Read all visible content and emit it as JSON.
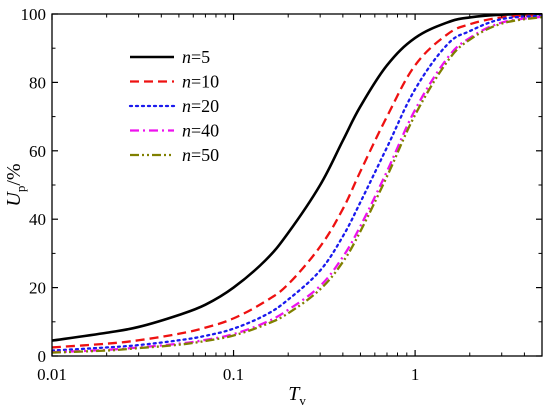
{
  "chart_data": {
    "type": "line",
    "title": "",
    "xlabel": {
      "main": "T",
      "sub": "v"
    },
    "ylabel": {
      "main": "U",
      "sub": "p",
      "suffix": "/%"
    },
    "xscale": "log",
    "xlim": [
      0.01,
      5
    ],
    "ylim": [
      0,
      100
    ],
    "xticks": [
      {
        "value": 0.01,
        "label": "0.01"
      },
      {
        "value": 0.1,
        "label": "0.1"
      },
      {
        "value": 1,
        "label": "1"
      }
    ],
    "yticks": [
      {
        "value": 0,
        "label": "0"
      },
      {
        "value": 20,
        "label": "20"
      },
      {
        "value": 40,
        "label": "40"
      },
      {
        "value": 60,
        "label": "60"
      },
      {
        "value": 80,
        "label": "80"
      },
      {
        "value": 100,
        "label": "100"
      }
    ],
    "grid": false,
    "legend": "upper-left",
    "series": [
      {
        "name_italic": "n",
        "name_rest": "=5",
        "color": "#000000",
        "style": "solid",
        "x": [
          0.01,
          0.02,
          0.03,
          0.05,
          0.07,
          0.1,
          0.15,
          0.2,
          0.3,
          0.4,
          0.5,
          0.7,
          1.0,
          1.5,
          2,
          3,
          5
        ],
        "y": [
          4.5,
          6.8,
          8.5,
          12,
          15,
          20,
          28,
          36,
          50,
          63,
          73,
          85,
          93,
          97.5,
          99,
          99.8,
          100
        ]
      },
      {
        "name_italic": "n",
        "name_rest": "=10",
        "color": "#ee1111",
        "style": "dash",
        "x": [
          0.01,
          0.02,
          0.03,
          0.05,
          0.07,
          0.1,
          0.15,
          0.2,
          0.3,
          0.4,
          0.5,
          0.7,
          1.0,
          1.5,
          2,
          3,
          5
        ],
        "y": [
          2.5,
          3.6,
          4.6,
          6.5,
          8.3,
          11,
          16,
          21,
          32,
          43,
          54,
          70,
          85,
          94,
          97,
          99,
          99.7
        ]
      },
      {
        "name_italic": "n",
        "name_rest": "=20",
        "color": "#1a1aee",
        "style": "dot",
        "x": [
          0.01,
          0.02,
          0.03,
          0.05,
          0.07,
          0.1,
          0.15,
          0.2,
          0.3,
          0.4,
          0.5,
          0.7,
          1.0,
          1.5,
          2,
          3,
          5
        ],
        "y": [
          1.6,
          2.5,
          3.2,
          4.6,
          5.9,
          8,
          12,
          16.5,
          25,
          35,
          45,
          61,
          78,
          91,
          95,
          98.5,
          99.5
        ]
      },
      {
        "name_italic": "n",
        "name_rest": "=40",
        "color": "#ee11ee",
        "style": "dashdot",
        "x": [
          0.01,
          0.02,
          0.03,
          0.05,
          0.07,
          0.1,
          0.15,
          0.2,
          0.3,
          0.4,
          0.5,
          0.7,
          1.0,
          1.5,
          2,
          3,
          5
        ],
        "y": [
          1.1,
          1.8,
          2.5,
          3.6,
          4.7,
          6.4,
          9.8,
          13.5,
          20.5,
          29,
          38,
          54,
          72,
          87,
          93,
          97.5,
          99.2
        ]
      },
      {
        "name_italic": "n",
        "name_rest": "=50",
        "color": "#808000",
        "style": "dashdotdot",
        "x": [
          0.01,
          0.02,
          0.03,
          0.05,
          0.07,
          0.1,
          0.15,
          0.2,
          0.3,
          0.4,
          0.5,
          0.7,
          1.0,
          1.5,
          2,
          3,
          5
        ],
        "y": [
          1.0,
          1.6,
          2.3,
          3.3,
          4.4,
          6.0,
          9.2,
          12.5,
          19.5,
          27.5,
          36.5,
          52.5,
          70.5,
          86,
          92.5,
          97.2,
          99.1
        ]
      }
    ]
  }
}
